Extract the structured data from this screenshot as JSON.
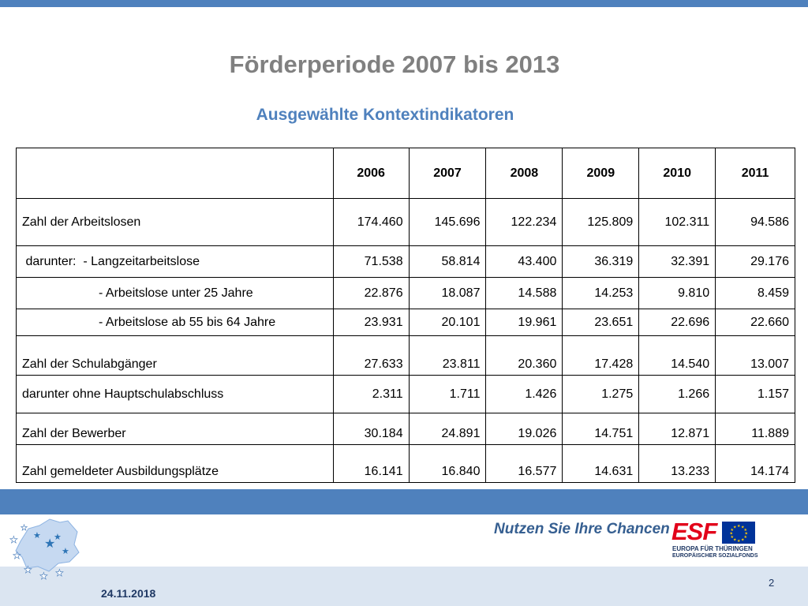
{
  "slide": {
    "title": "Förderperiode 2007 bis 2013",
    "subtitle": "Ausgewählte Kontextindikatoren",
    "date": "24.11.2018",
    "page_number": "2"
  },
  "table": {
    "header": [
      "",
      "2006",
      "2007",
      "2008",
      "2009",
      "2010",
      "2011"
    ],
    "rows": [
      {
        "label": "Zahl der Arbeitslosen",
        "values": [
          "174.460",
          "145.696",
          "122.234",
          "125.809",
          "102.311",
          "94.586"
        ]
      },
      {
        "label": " darunter:  - Langzeitarbeitslose",
        "values": [
          "71.538",
          "58.814",
          "43.400",
          "36.319",
          "32.391",
          "29.176"
        ]
      },
      {
        "label": "- Arbeitslose unter 25 Jahre",
        "values": [
          "22.876",
          "18.087",
          "14.588",
          "14.253",
          "9.810",
          "8.459"
        ]
      },
      {
        "label": "- Arbeitslose ab 55 bis 64 Jahre",
        "values": [
          "23.931",
          "20.101",
          "19.961",
          "23.651",
          "22.696",
          "22.660"
        ]
      },
      {
        "label": "Zahl der Schulabgänger",
        "values": [
          "27.633",
          "23.811",
          "20.360",
          "17.428",
          "14.540",
          "13.007"
        ]
      },
      {
        "label": "darunter ohne Hauptschulabschluss",
        "values": [
          "2.311",
          "1.711",
          "1.426",
          "1.275",
          "1.266",
          "1.157"
        ]
      },
      {
        "label": "Zahl der Bewerber",
        "values": [
          "30.184",
          "24.891",
          "19.026",
          "14.751",
          "12.871",
          "11.889"
        ]
      },
      {
        "label": "Zahl gemeldeter Ausbildungsplätze",
        "values": [
          "16.141",
          "16.840",
          "16.577",
          "14.631",
          "13.233",
          "14.174"
        ]
      }
    ]
  },
  "footer": {
    "slogan": "Nutzen Sie Ihre Chancen",
    "esf_logo": {
      "text": "ESF",
      "line1": "EUROPA FÜR THÜRINGEN",
      "line2": "EUROPÄISCHER SOZIALFONDS"
    },
    "icons": [
      "thuringia-stars-logo-icon",
      "eu-flag-icon"
    ]
  },
  "colors": {
    "accent_blue": "#4f81bd",
    "title_gray": "#808080",
    "footer_light": "#dbe5f1",
    "esf_red": "#e2001a",
    "navy": "#1f3864"
  }
}
